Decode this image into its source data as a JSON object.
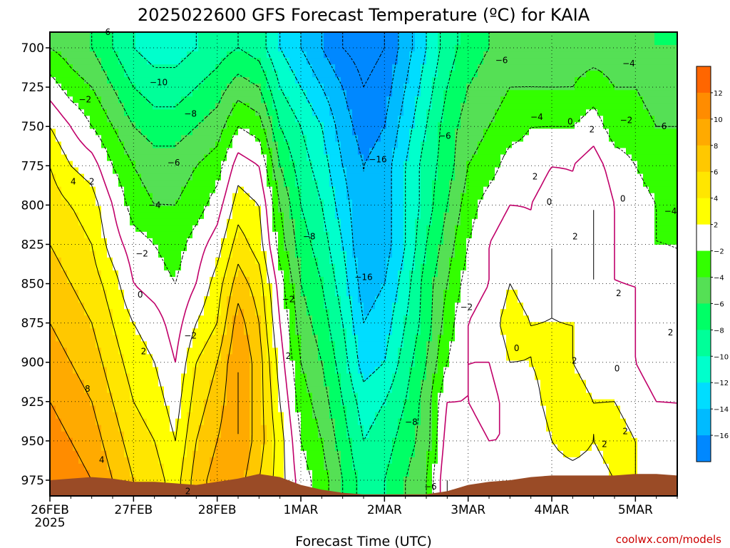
{
  "chart_data": {
    "type": "heatmap",
    "title": "2025022600 GFS Forecast Temperature (ºC) for KAIA",
    "xlabel": "Forecast Time (UTC)",
    "ylabel": "",
    "x_categories": [
      "26FEB",
      "27FEB",
      "28FEB",
      "1MAR",
      "2MAR",
      "3MAR",
      "4MAR",
      "5MAR"
    ],
    "x_year_label": "2025",
    "y_ticks": [
      700,
      725,
      750,
      775,
      800,
      825,
      850,
      875,
      900,
      925,
      950,
      975
    ],
    "y_units": "hPa",
    "y_reversed": true,
    "ylim": [
      985,
      690
    ],
    "xlim_days": [
      0,
      7.5
    ],
    "grid": true,
    "colorbar": {
      "labels": [
        "12",
        "10",
        "8",
        "6",
        "4",
        "2",
        "-2",
        "-4",
        "-6",
        "-8",
        "-10",
        "-12",
        "-14",
        "-16"
      ],
      "colors": [
        "#ff6600",
        "#ff8c00",
        "#ffaa00",
        "#ffc800",
        "#ffe600",
        "#ffff00",
        "#ffffff",
        "#33ff00",
        "#55e055",
        "#00ff66",
        "#00ff99",
        "#00ffcc",
        "#00ddff",
        "#00bbff",
        "#0088ff"
      ]
    },
    "profiles_x_days": [
      0,
      0.25,
      0.5,
      0.75,
      1.0,
      1.25,
      1.5,
      1.75,
      2.0,
      2.25,
      2.5,
      2.75,
      3.0,
      3.25,
      3.5,
      3.75,
      4.0,
      4.25,
      4.5,
      4.75,
      5.0,
      5.25,
      5.5,
      5.75,
      6.0,
      6.25,
      6.5,
      6.75,
      7.0,
      7.25,
      7.5
    ],
    "levels_hPa": [
      700,
      725,
      750,
      775,
      800,
      825,
      850,
      875,
      900,
      925,
      950,
      975
    ],
    "temperature_C": [
      [
        -4,
        -1,
        2,
        4,
        5,
        6,
        7,
        8,
        9,
        10,
        11,
        12
      ],
      [
        -5,
        -3,
        0,
        2,
        4,
        5,
        6,
        7,
        8,
        9,
        10,
        11
      ],
      [
        -6,
        -4,
        -2,
        1,
        3,
        4,
        5,
        6,
        7,
        8,
        9,
        10
      ],
      [
        -8,
        -6,
        -4,
        -2,
        0,
        1,
        3,
        4,
        5,
        6,
        7,
        8
      ],
      [
        -10,
        -8,
        -6,
        -4,
        -3,
        -1,
        0,
        2,
        3,
        4,
        5,
        6
      ],
      [
        -11,
        -9,
        -7,
        -5,
        -4,
        -2,
        -1,
        1,
        2,
        3,
        4,
        5
      ],
      [
        -11,
        -9,
        -7,
        -5,
        -4,
        -3,
        -2,
        -1,
        0,
        1,
        2,
        3
      ],
      [
        -10,
        -8,
        -6,
        -4,
        -3,
        -1,
        0,
        2,
        4,
        5,
        6,
        7
      ],
      [
        -9,
        -7,
        -5,
        -3,
        -1,
        1,
        3,
        4,
        6,
        7,
        8,
        9
      ],
      [
        -8,
        -5,
        -2,
        1,
        3,
        5,
        7,
        9,
        10,
        10,
        10,
        9
      ],
      [
        -9,
        -6,
        -3,
        0,
        2,
        3,
        5,
        6,
        7,
        7,
        7,
        6
      ],
      [
        -12,
        -10,
        -8,
        -6,
        -4,
        -3,
        -1,
        0,
        1,
        2,
        3,
        3
      ],
      [
        -14,
        -12,
        -10,
        -9,
        -8,
        -7,
        -6,
        -5,
        -4,
        -3,
        -2,
        -1
      ],
      [
        -16,
        -14,
        -12,
        -11,
        -10,
        -9,
        -8,
        -7,
        -6,
        -5,
        -4,
        -3
      ],
      [
        -18,
        -16,
        -15,
        -14,
        -13,
        -12,
        -11,
        -10,
        -9,
        -8,
        -7,
        -6
      ],
      [
        -19,
        -18,
        -17,
        -16,
        -16,
        -16,
        -15,
        -14,
        -13,
        -11,
        -10,
        -9
      ],
      [
        -18,
        -17,
        -16,
        -15,
        -15,
        -15,
        -14,
        -13,
        -12,
        -10,
        -9,
        -8
      ],
      [
        -15,
        -14,
        -13,
        -12,
        -12,
        -12,
        -11,
        -10,
        -9,
        -8,
        -7,
        -6
      ],
      [
        -12,
        -11,
        -10,
        -9,
        -9,
        -8,
        -7,
        -7,
        -6,
        -5,
        -5,
        -4
      ],
      [
        -9,
        -8,
        -7,
        -7,
        -6,
        -5,
        -4,
        -3,
        -2,
        0,
        1,
        2
      ],
      [
        -7,
        -6,
        -5,
        -4,
        -3,
        -2,
        -1,
        0,
        0,
        0,
        1,
        1
      ],
      [
        -6,
        -5,
        -4,
        -3,
        -1,
        0,
        0,
        1,
        0,
        -1,
        0,
        1
      ],
      [
        -5,
        -4,
        -3,
        -1,
        0,
        1,
        2,
        3,
        2,
        1,
        0,
        1
      ],
      [
        -5,
        -4,
        -2,
        -1,
        0,
        0,
        1,
        2,
        2,
        1,
        0,
        1
      ],
      [
        -6,
        -4,
        -2,
        0,
        1,
        2,
        2,
        2,
        3,
        3,
        2,
        1
      ],
      [
        -5,
        -4,
        -2,
        0,
        0,
        1,
        1,
        2,
        2,
        3,
        3,
        1
      ],
      [
        -5,
        -3,
        -1,
        1,
        2,
        2,
        2,
        1,
        1,
        2,
        2,
        1
      ],
      [
        -5,
        -4,
        -3,
        -1,
        0,
        0,
        0,
        1,
        1,
        2,
        3,
        2
      ],
      [
        -5,
        -4,
        -3,
        -2,
        -1,
        -1,
        0,
        0,
        0,
        1,
        2,
        2
      ],
      [
        -6,
        -5,
        -4,
        -3,
        -2,
        -2,
        -1,
        -1,
        -1,
        0,
        1,
        1
      ],
      [
        -6,
        -5,
        -4,
        -3,
        -3,
        -2,
        -2,
        -1,
        -1,
        0,
        0,
        1
      ]
    ],
    "surface_pressure_hPa": [
      975,
      974,
      973,
      974,
      976,
      976,
      977,
      978,
      976,
      974,
      971,
      973,
      978,
      981,
      983,
      984,
      984,
      984,
      984,
      982,
      978,
      976,
      975,
      973,
      972,
      972,
      972,
      972,
      971,
      971,
      972
    ],
    "contour_labels": [
      {
        "text": "-6",
        "t": 0.65,
        "p": 690
      },
      {
        "text": "-10",
        "t": 1.3,
        "p": 722
      },
      {
        "text": "-8",
        "t": 1.68,
        "p": 742
      },
      {
        "text": "-6",
        "t": 1.48,
        "p": 773
      },
      {
        "text": "-4",
        "t": 1.25,
        "p": 800
      },
      {
        "text": "-2",
        "t": 1.1,
        "p": 831
      },
      {
        "text": "-2",
        "t": 0.42,
        "p": 733
      },
      {
        "text": "4",
        "t": 0.28,
        "p": 785
      },
      {
        "text": "2",
        "t": 0.5,
        "p": 785
      },
      {
        "text": "0",
        "t": 1.08,
        "p": 857
      },
      {
        "text": "2",
        "t": 1.12,
        "p": 893
      },
      {
        "text": "8",
        "t": 0.45,
        "p": 917
      },
      {
        "text": "4",
        "t": 0.62,
        "p": 962
      },
      {
        "text": "-2",
        "t": 1.68,
        "p": 883
      },
      {
        "text": "2",
        "t": 1.65,
        "p": 982
      },
      {
        "text": "-8",
        "t": 3.1,
        "p": 820
      },
      {
        "text": "-2",
        "t": 2.85,
        "p": 860
      },
      {
        "text": "2",
        "t": 2.85,
        "p": 896
      },
      {
        "text": "-16",
        "t": 3.92,
        "p": 771
      },
      {
        "text": "-16",
        "t": 3.75,
        "p": 846
      },
      {
        "text": "-8",
        "t": 4.32,
        "p": 938
      },
      {
        "text": "-6",
        "t": 4.55,
        "p": 979
      },
      {
        "text": "-6",
        "t": 4.72,
        "p": 756
      },
      {
        "text": "-2",
        "t": 4.98,
        "p": 865
      },
      {
        "text": "-6",
        "t": 5.4,
        "p": 708
      },
      {
        "text": "-4",
        "t": 5.82,
        "p": 744
      },
      {
        "text": "2",
        "t": 5.8,
        "p": 782
      },
      {
        "text": "0",
        "t": 5.97,
        "p": 798
      },
      {
        "text": "0",
        "t": 6.22,
        "p": 747
      },
      {
        "text": "2",
        "t": 6.48,
        "p": 752
      },
      {
        "text": "2",
        "t": 6.28,
        "p": 820
      },
      {
        "text": "0",
        "t": 5.58,
        "p": 891
      },
      {
        "text": "2",
        "t": 6.27,
        "p": 899
      },
      {
        "text": "2",
        "t": 6.8,
        "p": 856
      },
      {
        "text": "2",
        "t": 6.63,
        "p": 952
      },
      {
        "text": "2",
        "t": 6.88,
        "p": 944
      },
      {
        "text": "0",
        "t": 6.78,
        "p": 904
      },
      {
        "text": "0",
        "t": 6.85,
        "p": 796
      },
      {
        "text": "-4",
        "t": 6.92,
        "p": 710
      },
      {
        "text": "-2",
        "t": 6.89,
        "p": 746
      },
      {
        "text": "-6",
        "t": 7.3,
        "p": 750
      },
      {
        "text": "-4",
        "t": 7.42,
        "p": 804
      },
      {
        "text": "2",
        "t": 7.42,
        "p": 881
      }
    ]
  },
  "credit": "coolwx.com/models"
}
